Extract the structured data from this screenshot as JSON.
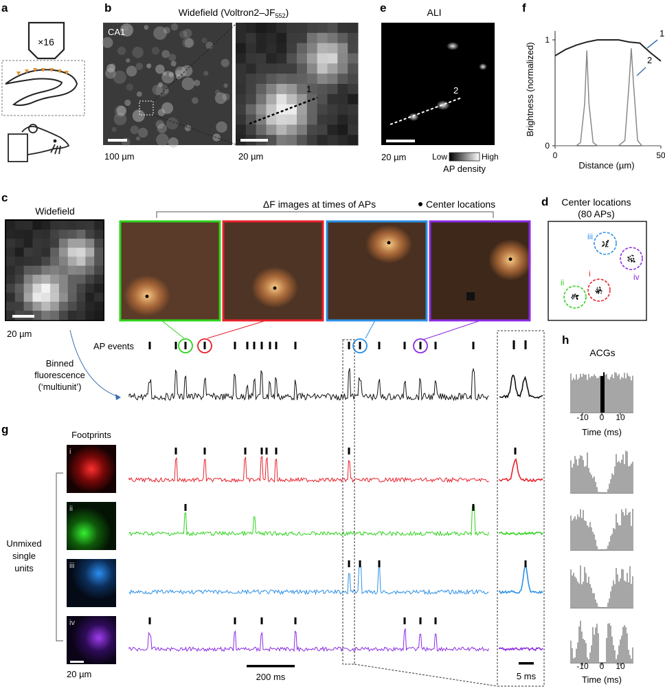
{
  "panels": {
    "a": "a",
    "b": "b",
    "c": "c",
    "d": "d",
    "e": "e",
    "f": "f",
    "g": "g",
    "h": "h"
  },
  "a": {
    "objective": "×16"
  },
  "b": {
    "title_main": "Widefield (Voltron2–JF",
    "title_sub": "552",
    "title_end": ")",
    "region": "CA1",
    "scale_left": "100 µm",
    "scale_right": "20 µm",
    "line_label": "1"
  },
  "e": {
    "title": "ALI",
    "scale": "20 µm",
    "line_label": "2",
    "cbar_low": "Low",
    "cbar_high": "High",
    "cbar_label": "AP density"
  },
  "f": {
    "ylabel": "Brightness (normalized)",
    "xlabel": "Distance (µm)",
    "xticks": [
      "0",
      "50"
    ],
    "yticks": [
      "0",
      "1"
    ],
    "label1": "1",
    "label2": "2"
  },
  "c": {
    "widefield_title": "Widefield",
    "scale": "20 µm",
    "df_header": "ΔF images at times of APs",
    "center_legend": "Center locations",
    "ap_events": "AP events",
    "binned_line1": "Binned",
    "binned_line2": "fluorescence",
    "binned_line3": "(‘multiunit’)"
  },
  "d": {
    "title_line1": "Center locations",
    "title_line2": "(80 APs)",
    "units": [
      "i",
      "ii",
      "iii",
      "iv"
    ]
  },
  "g": {
    "footprints": "Footprints",
    "unmixed_line1": "Unmixed",
    "unmixed_line2": "single",
    "unmixed_line3": "units",
    "units": [
      "i",
      "ii",
      "iii",
      "iv"
    ],
    "scale": "20 µm",
    "scalebar_time": "200 ms",
    "scalebar_zoom": "5 ms"
  },
  "h": {
    "title": "ACGs",
    "xticks": [
      "-10",
      "0",
      "10"
    ],
    "xlabel": "Time (ms)"
  },
  "colors": {
    "i": "#e8202a",
    "ii": "#2fd31c",
    "iii": "#2a8fe6",
    "iv": "#8b2be2",
    "black": "#111111",
    "gray": "#a6a6a6"
  },
  "chart_data": [
    {
      "type": "line",
      "xlabel": "Distance (µm)",
      "ylabel": "Brightness (normalized)",
      "xlim": [
        0,
        50
      ],
      "ylim": [
        0,
        1
      ],
      "series": [
        {
          "name": "1",
          "x": [
            0,
            5,
            10,
            15,
            20,
            25,
            30,
            35,
            40,
            45,
            50
          ],
          "values": [
            0.85,
            0.91,
            0.95,
            0.98,
            1.0,
            1.0,
            1.0,
            0.98,
            0.97,
            0.88,
            0.8
          ]
        },
        {
          "name": "2",
          "x": [
            0,
            10,
            12,
            14,
            15,
            16,
            18,
            20,
            25,
            30,
            33,
            35,
            36,
            37,
            39,
            41,
            45,
            50
          ],
          "values": [
            0,
            0,
            0.03,
            0.4,
            0.9,
            0.4,
            0.03,
            0,
            0,
            0,
            0.05,
            0.6,
            0.92,
            0.6,
            0.05,
            0,
            0,
            0
          ]
        }
      ]
    }
  ]
}
